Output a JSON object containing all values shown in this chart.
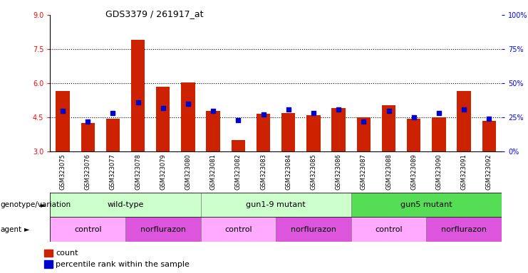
{
  "title": "GDS3379 / 261917_at",
  "samples": [
    "GSM323075",
    "GSM323076",
    "GSM323077",
    "GSM323078",
    "GSM323079",
    "GSM323080",
    "GSM323081",
    "GSM323082",
    "GSM323083",
    "GSM323084",
    "GSM323085",
    "GSM323086",
    "GSM323087",
    "GSM323088",
    "GSM323089",
    "GSM323090",
    "GSM323091",
    "GSM323092"
  ],
  "counts": [
    5.65,
    4.25,
    4.45,
    7.9,
    5.85,
    6.05,
    4.8,
    3.5,
    4.65,
    4.7,
    4.6,
    4.9,
    4.5,
    5.05,
    4.45,
    4.5,
    5.65,
    4.35
  ],
  "percentiles": [
    30,
    22,
    28,
    36,
    32,
    35,
    30,
    23,
    27,
    31,
    28,
    31,
    22,
    30,
    25,
    28,
    31,
    24
  ],
  "ylim_left": [
    3,
    9
  ],
  "ylim_right": [
    0,
    100
  ],
  "yticks_left": [
    3,
    4.5,
    6,
    7.5,
    9
  ],
  "yticks_right": [
    0,
    25,
    50,
    75,
    100
  ],
  "bar_color": "#cc2200",
  "dot_color": "#0000cc",
  "bar_width": 0.55,
  "geno_groups": [
    {
      "label": "wild-type",
      "start": 0,
      "end": 5,
      "color": "#ccffcc"
    },
    {
      "label": "gun1-9 mutant",
      "start": 6,
      "end": 11,
      "color": "#ccffcc"
    },
    {
      "label": "gun5 mutant",
      "start": 12,
      "end": 17,
      "color": "#55dd55"
    }
  ],
  "agent_groups": [
    {
      "label": "control",
      "start": 0,
      "end": 2,
      "color": "#ffaaff"
    },
    {
      "label": "norflurazon",
      "start": 3,
      "end": 5,
      "color": "#dd55dd"
    },
    {
      "label": "control",
      "start": 6,
      "end": 8,
      "color": "#ffaaff"
    },
    {
      "label": "norflurazon",
      "start": 9,
      "end": 11,
      "color": "#dd55dd"
    },
    {
      "label": "control",
      "start": 12,
      "end": 14,
      "color": "#ffaaff"
    },
    {
      "label": "norflurazon",
      "start": 15,
      "end": 17,
      "color": "#dd55dd"
    }
  ]
}
